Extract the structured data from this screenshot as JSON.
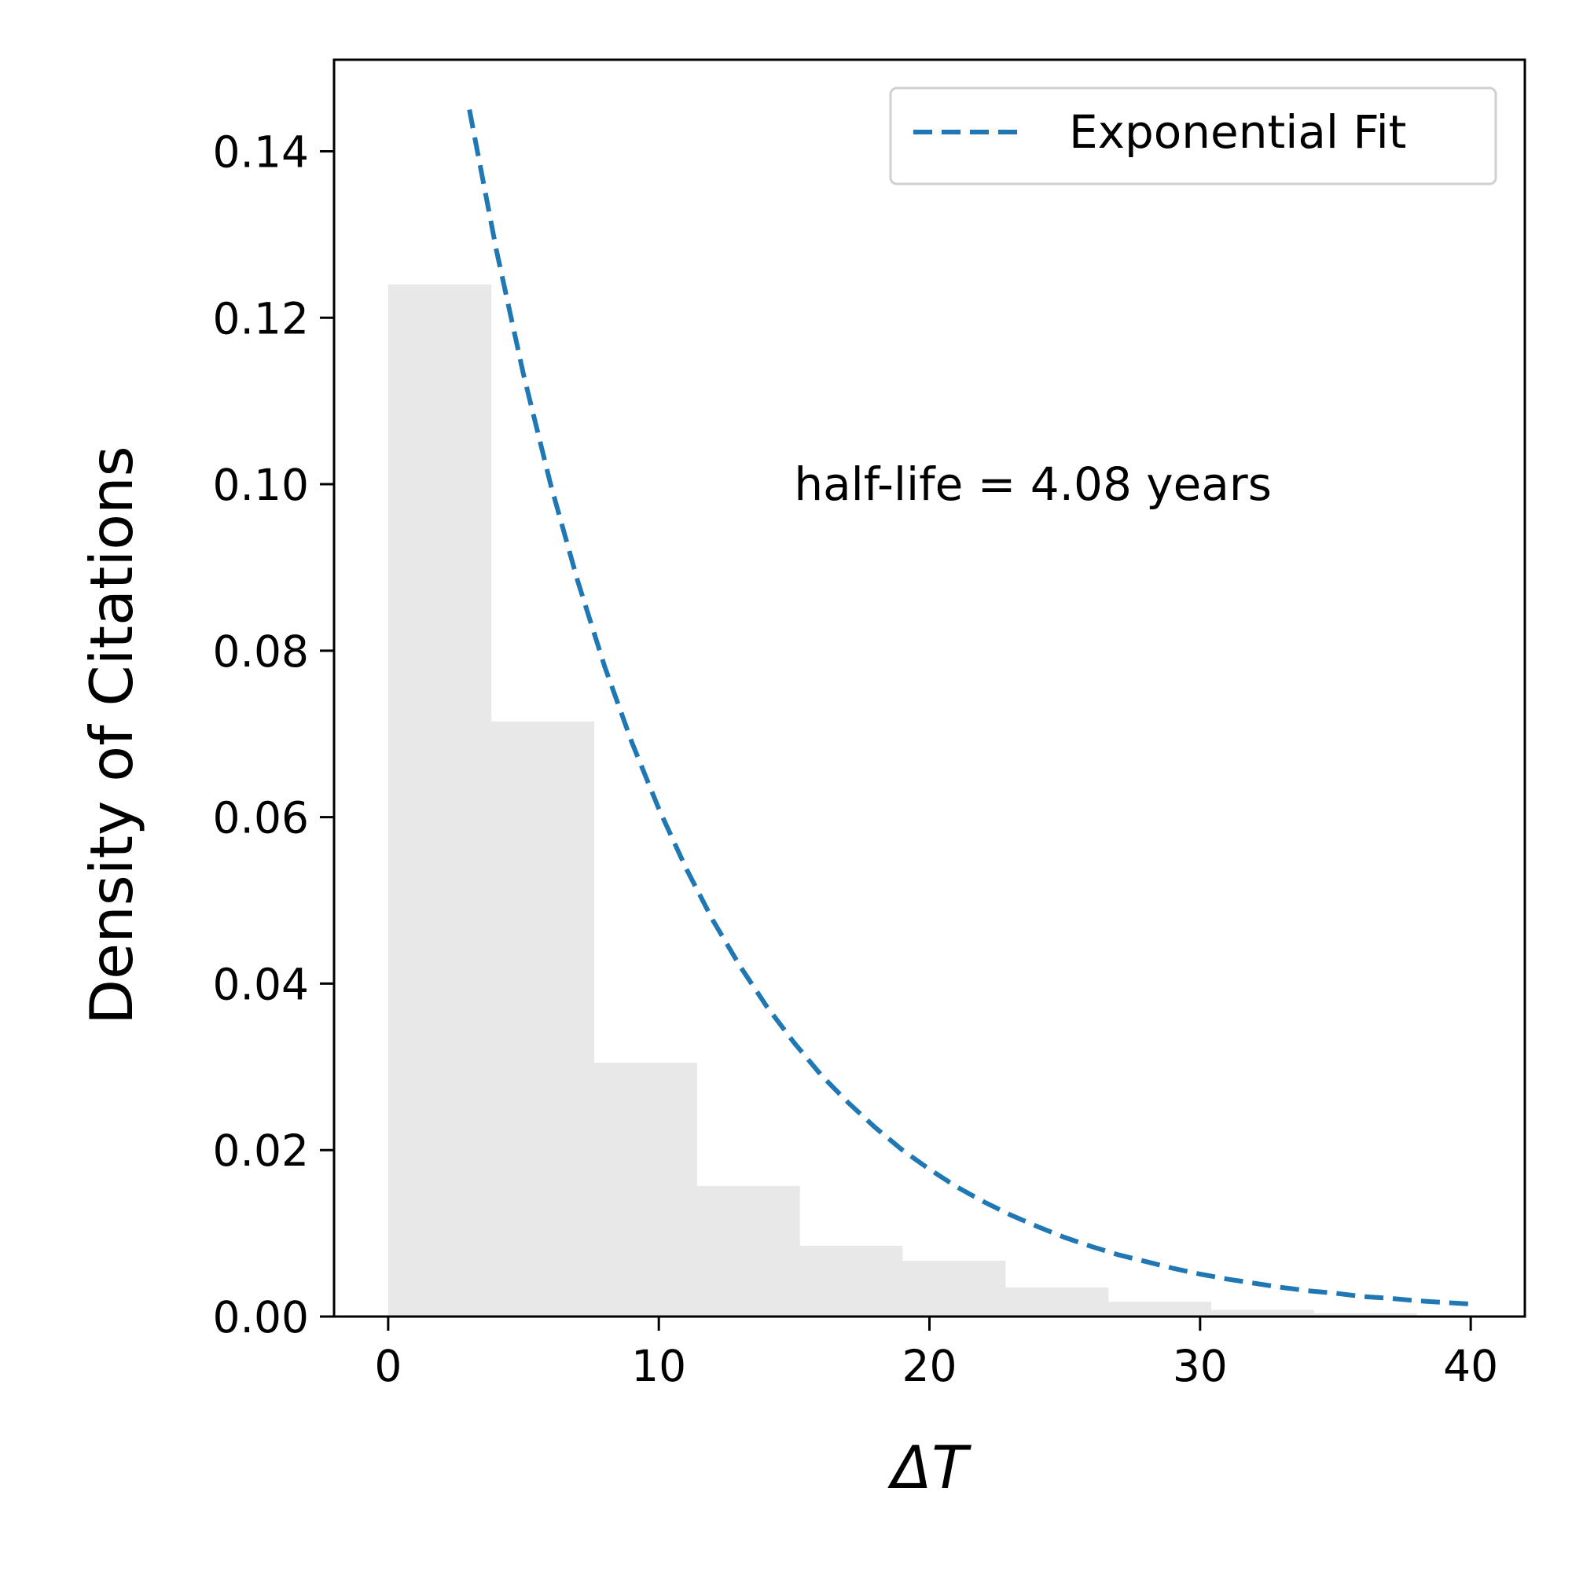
{
  "chart_data": {
    "type": "bar",
    "title": "",
    "xlabel": "ΔT",
    "ylabel": "Density of Citations",
    "xlim": [
      -2,
      42
    ],
    "ylim": [
      0,
      0.151
    ],
    "x_ticks": [
      0,
      10,
      20,
      30,
      40
    ],
    "x_tick_labels": [
      "0",
      "10",
      "20",
      "30",
      "40"
    ],
    "y_ticks": [
      0,
      0.02,
      0.04,
      0.06,
      0.08,
      0.1,
      0.12,
      0.14
    ],
    "y_tick_labels": [
      "0.00",
      "0.02",
      "0.04",
      "0.06",
      "0.08",
      "0.10",
      "0.12",
      "0.14"
    ],
    "grid": false,
    "histogram": {
      "color": "#e8e8e8",
      "bin_edges": [
        0,
        3.8,
        7.6,
        11.4,
        15.2,
        19.0,
        22.8,
        26.6,
        30.4,
        34.2,
        38.0
      ],
      "values": [
        0.124,
        0.0715,
        0.0305,
        0.0157,
        0.0085,
        0.0067,
        0.0035,
        0.0018,
        0.0008,
        0.0004
      ]
    },
    "series": [
      {
        "name": "Exponential Fit",
        "style": "dashed",
        "color": "#1f77b4",
        "x": [
          3,
          4,
          5,
          6,
          7,
          8,
          9,
          10,
          11,
          12,
          13,
          14,
          15,
          16,
          17,
          18,
          19,
          20,
          21,
          22,
          23,
          24,
          25,
          26,
          27,
          28,
          29,
          30,
          31,
          32,
          33,
          34,
          35,
          36,
          37,
          38,
          39,
          40
        ],
        "y": [
          0.145,
          0.1281,
          0.1132,
          0.1,
          0.0884,
          0.0781,
          0.069,
          0.061,
          0.0539,
          0.0476,
          0.0421,
          0.0372,
          0.0329,
          0.029,
          0.0257,
          0.0227,
          0.02,
          0.0177,
          0.0156,
          0.0138,
          0.0122,
          0.0108,
          0.0095,
          0.0084,
          0.0074,
          0.0066,
          0.0058,
          0.0051,
          0.0045,
          0.004,
          0.0035,
          0.0031,
          0.0028,
          0.0024,
          0.0022,
          0.0019,
          0.0017,
          0.0015
        ]
      }
    ],
    "legend": {
      "position": "top-right",
      "entries": [
        "Exponential Fit"
      ]
    },
    "annotation": {
      "text": "half-life = 4.08 years",
      "x": 15,
      "y": 0.1
    }
  }
}
